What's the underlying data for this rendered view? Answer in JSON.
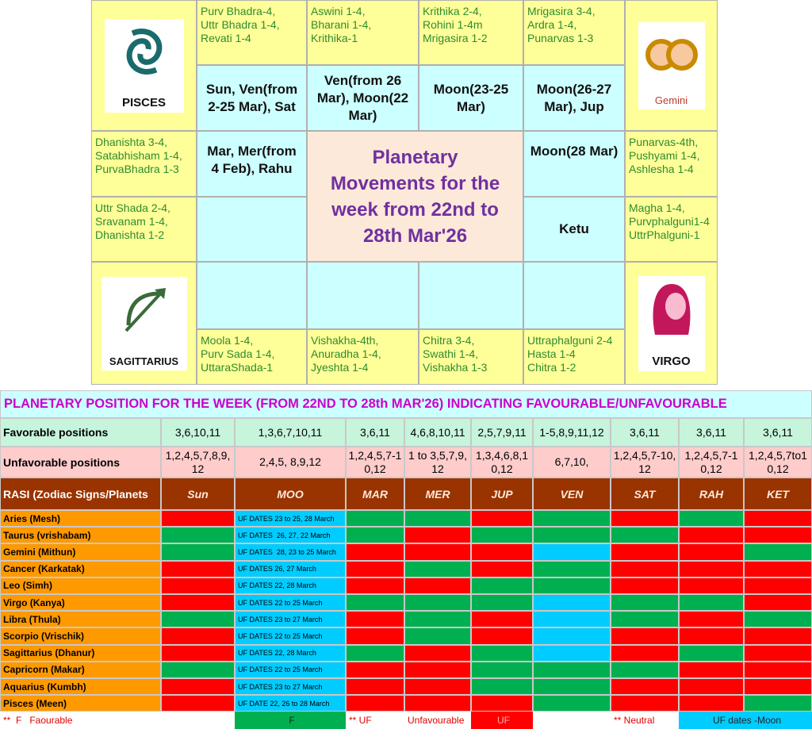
{
  "chart": {
    "title": "Planetary Movements for the week from 22nd to 28th Mar'26",
    "signs": [
      "PISCES",
      "Gemini",
      "SAGITTARIUS",
      "VIRGO"
    ],
    "nakshatras": [
      "Purv Bhadra-4,\nUttr Bhadra 1-4,\nRevati 1-4",
      "Aswini 1-4,\nBharani 1-4,\nKrithika-1",
      "Krithika 2-4,\nRohini 1-4m\nMrigasira 1-2",
      "Mrigasira 3-4,\nArdra 1-4,\nPunarvas 1-3",
      "Dhanishta 3-4,\nSatabhisham 1-4,\nPurvaBhadra 1-3",
      "Punarvas-4th,\nPushyami 1-4,\nAshlesha 1-4",
      "Uttr Shada 2-4,\nSravanam 1-4,\nDhanishta 1-2",
      "Magha 1-4,\nPurvphalguni1-4\nUttrPhalguni-1",
      "Moola 1-4,\nPurv Sada 1-4,\nUttaraShada-1",
      "Vishakha-4th,\nAnuradha 1-4,\nJyeshta 1-4",
      "Chitra 3-4,\nSwathi 1-4,\nVishakha 1-3",
      "Uttraphalguni 2-4\nHasta 1-4\nChitra 1-2"
    ],
    "planets": [
      "Sun, Ven(from 2-25 Mar), Sat",
      "Ven(from 26 Mar), Moon(22 Mar)",
      "Moon(23-25 Mar)",
      "Moon(26-27 Mar), Jup",
      "Mar, Mer(from 4 Feb), Rahu",
      "Moon(28 Mar)",
      "Ketu"
    ]
  },
  "table": {
    "title": "PLANETARY POSITION FOR THE WEEK (FROM 22ND TO 28th MAR'26) INDICATING FAVOURABLE/UNFAVOURABLE",
    "header_label": "RASI (Zodiac Signs/Planets",
    "columns": [
      "Sun",
      "MOO",
      "MAR",
      "MER",
      "JUP",
      "VEN",
      "SAT",
      "RAH",
      "KET"
    ],
    "favorable": {
      "label": "Favorable positions",
      "values": [
        "3,6,10,11",
        "1,3,6,7,10,11",
        "3,6,11",
        "4,6,8,10,11",
        "2,5,7,9,11",
        "1-5,8,9,11,12",
        "3,6,11",
        "3,6,11",
        "3,6,11"
      ]
    },
    "unfavorable": {
      "label": "Unfavorable positions",
      "values": [
        "1,2,4,5,7,8,9,12",
        "2,4,5, 8,9,12",
        "1,2,4,5,7-10,12",
        "1 to 3,5,7,9,12",
        "1,3,4,6,8,10,12",
        "6,7,10,",
        "1,2,4,5,7-10,12",
        "1,2,4,5,7-10,12",
        "1,2,4,5,7to10,12"
      ]
    },
    "rows": [
      {
        "rasi": "Aries (Mesh)",
        "moon_note": "UF DATES 23 to 25, 28 March",
        "colors": [
          "#ff0000",
          "#00ccff",
          "#00b050",
          "#00b050",
          "#ff0000",
          "#00b050",
          "#ff0000",
          "#00b050",
          "#ff0000"
        ]
      },
      {
        "rasi": "Taurus (vrishabam)",
        "moon_note": "UF DATES  26, 27, 22 March",
        "colors": [
          "#00b050",
          "#00ccff",
          "#00b050",
          "#ff0000",
          "#00b050",
          "#00b050",
          "#00b050",
          "#ff0000",
          "#ff0000"
        ]
      },
      {
        "rasi": "Gemini (Mithun)",
        "moon_note": "UF DATES  28, 23 to 25 March",
        "colors": [
          "#00b050",
          "#00ccff",
          "#ff0000",
          "#ff0000",
          "#ff0000",
          "#00ccff",
          "#ff0000",
          "#ff0000",
          "#00b050"
        ]
      },
      {
        "rasi": "Cancer (Karkatak)",
        "moon_note": "UF DATES 26, 27 March",
        "colors": [
          "#ff0000",
          "#00ccff",
          "#ff0000",
          "#00b050",
          "#ff0000",
          "#00b050",
          "#ff0000",
          "#ff0000",
          "#ff0000"
        ]
      },
      {
        "rasi": "Leo (Simh)",
        "moon_note": "UF DATES 22, 28 March",
        "colors": [
          "#ff0000",
          "#00ccff",
          "#ff0000",
          "#ff0000",
          "#00b050",
          "#00b050",
          "#ff0000",
          "#ff0000",
          "#ff0000"
        ]
      },
      {
        "rasi": "Virgo (Kanya)",
        "moon_note": "UF DATES 22 to 25 March",
        "colors": [
          "#ff0000",
          "#00ccff",
          "#00b050",
          "#00b050",
          "#00b050",
          "#00ccff",
          "#00b050",
          "#00b050",
          "#ff0000"
        ]
      },
      {
        "rasi": "Libra (Thula)",
        "moon_note": "UF DATES 23 to 27 March",
        "colors": [
          "#00b050",
          "#00ccff",
          "#ff0000",
          "#00b050",
          "#ff0000",
          "#00ccff",
          "#00b050",
          "#ff0000",
          "#00b050"
        ]
      },
      {
        "rasi": "Scorpio (Vrischik)",
        "moon_note": "UF DATES 22 to 25 March",
        "colors": [
          "#ff0000",
          "#00ccff",
          "#ff0000",
          "#00b050",
          "#ff0000",
          "#00ccff",
          "#ff0000",
          "#ff0000",
          "#ff0000"
        ]
      },
      {
        "rasi": "Sagittarius (Dhanur)",
        "moon_note": "UF DATES 22, 28 March",
        "colors": [
          "#ff0000",
          "#00ccff",
          "#00b050",
          "#ff0000",
          "#00b050",
          "#00ccff",
          "#ff0000",
          "#00b050",
          "#ff0000"
        ]
      },
      {
        "rasi": "Capricorn (Makar)",
        "moon_note": "UF DATES 22 to 25 March",
        "colors": [
          "#00b050",
          "#00ccff",
          "#ff0000",
          "#ff0000",
          "#00b050",
          "#00b050",
          "#00b050",
          "#ff0000",
          "#ff0000"
        ]
      },
      {
        "rasi": "Aquarius (Kumbh)",
        "moon_note": "UF DATES 23 to 27 March",
        "colors": [
          "#ff0000",
          "#00ccff",
          "#ff0000",
          "#ff0000",
          "#00b050",
          "#00b050",
          "#ff0000",
          "#ff0000",
          "#ff0000"
        ]
      },
      {
        "rasi": "Pisces (Meen)",
        "moon_note": "UF DATE 22, 26 to 28 March",
        "colors": [
          "#ff0000",
          "#00ccff",
          "#ff0000",
          "#ff0000",
          "#ff0000",
          "#00b050",
          "#ff0000",
          "#ff0000",
          "#00b050"
        ]
      }
    ],
    "legend": [
      {
        "text": "**  F   Faourable"
      },
      {
        "text": "F",
        "color": "#00b050"
      },
      {
        "text": "** UF"
      },
      {
        "text": "Unfavourable"
      },
      {
        "text": "UF",
        "color": "#ff0000"
      },
      {
        "text": "** Neutral"
      },
      {
        "text": "UF dates -Moon",
        "color": "#00ccff"
      }
    ]
  }
}
